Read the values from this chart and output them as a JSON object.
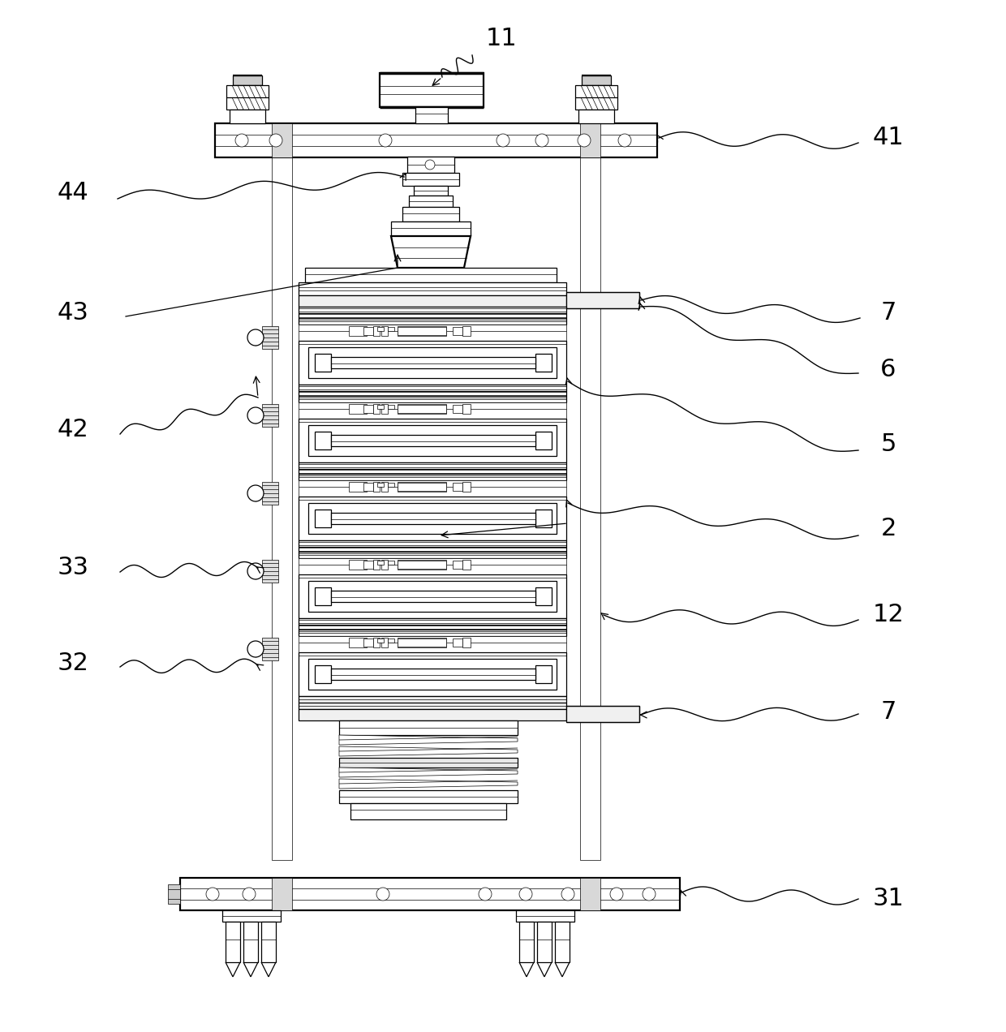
{
  "bg": "#ffffff",
  "fw": 12.4,
  "fh": 12.72,
  "dpi": 100,
  "lw0": 0.5,
  "lw1": 0.9,
  "lw2": 1.6,
  "lw3": 2.5
}
